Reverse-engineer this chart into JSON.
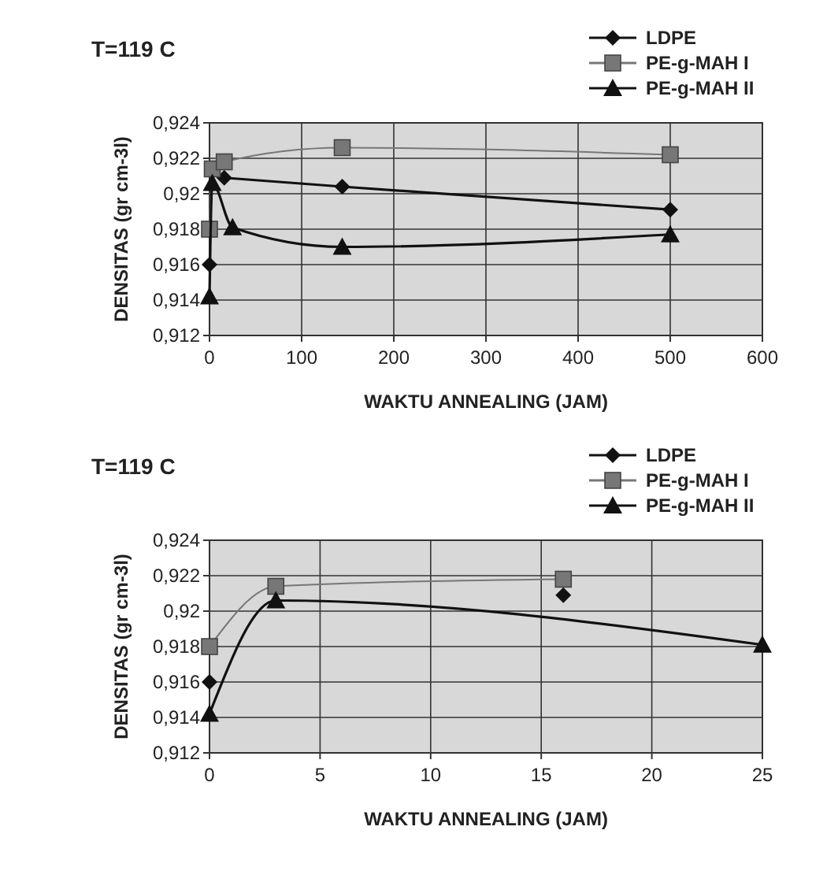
{
  "chart_data": [
    {
      "type": "line",
      "title": "T=119 C",
      "xlabel": "WAKTU ANNEALING (JAM)",
      "ylabel": "DENSITAS (gr cm-3l)",
      "xlim": [
        0,
        600
      ],
      "xticks": [
        0,
        100,
        200,
        300,
        400,
        500,
        600
      ],
      "ylim": [
        0.912,
        0.924
      ],
      "yticks": [
        {
          "value": 0.912,
          "label": "0,912"
        },
        {
          "value": 0.914,
          "label": "0,914"
        },
        {
          "value": 0.916,
          "label": "0,916"
        },
        {
          "value": 0.918,
          "label": "0,918"
        },
        {
          "value": 0.92,
          "label": "0,92"
        },
        {
          "value": 0.922,
          "label": "0,922"
        },
        {
          "value": 0.924,
          "label": "0,924"
        }
      ],
      "grid": true,
      "legend": "top right",
      "series": [
        {
          "name": "LDPE",
          "color": "#111111",
          "marker": "diamond",
          "x": [
            0,
            3,
            16,
            144,
            500
          ],
          "values": [
            0.916,
            null,
            0.9209,
            0.9204,
            0.9191
          ]
        },
        {
          "name": "PE-g-MAH I",
          "color": "#777777",
          "marker": "square",
          "x": [
            0,
            3,
            16,
            144,
            500
          ],
          "values": [
            0.918,
            0.9214,
            0.9218,
            0.9226,
            0.9222
          ]
        },
        {
          "name": "PE-g-MAH II",
          "color": "#111111",
          "marker": "triangle",
          "x": [
            0,
            3,
            25,
            144,
            500
          ],
          "values": [
            0.9142,
            0.9206,
            0.9181,
            0.917,
            0.9177
          ]
        }
      ]
    },
    {
      "type": "line",
      "title": "T=119 C",
      "xlabel": "WAKTU ANNEALING (JAM)",
      "ylabel": "DENSITAS (gr cm-3l)",
      "xlim": [
        0,
        25
      ],
      "xticks": [
        0,
        5,
        10,
        15,
        20,
        25
      ],
      "ylim": [
        0.912,
        0.924
      ],
      "yticks": [
        {
          "value": 0.912,
          "label": "0,912"
        },
        {
          "value": 0.914,
          "label": "0,914"
        },
        {
          "value": 0.916,
          "label": "0,916"
        },
        {
          "value": 0.918,
          "label": "0,918"
        },
        {
          "value": 0.92,
          "label": "0,92"
        },
        {
          "value": 0.922,
          "label": "0,922"
        },
        {
          "value": 0.924,
          "label": "0,924"
        }
      ],
      "grid": true,
      "legend": "top right",
      "series": [
        {
          "name": "LDPE",
          "color": "#111111",
          "marker": "diamond",
          "x": [
            0,
            3,
            16
          ],
          "values": [
            0.916,
            null,
            0.9209
          ]
        },
        {
          "name": "PE-g-MAH I",
          "color": "#777777",
          "marker": "square",
          "x": [
            0,
            3,
            16
          ],
          "values": [
            0.918,
            0.9214,
            0.9218
          ]
        },
        {
          "name": "PE-g-MAH II",
          "color": "#111111",
          "marker": "triangle",
          "x": [
            0,
            3,
            25
          ],
          "values": [
            0.9142,
            0.9206,
            0.9181
          ]
        }
      ]
    }
  ]
}
